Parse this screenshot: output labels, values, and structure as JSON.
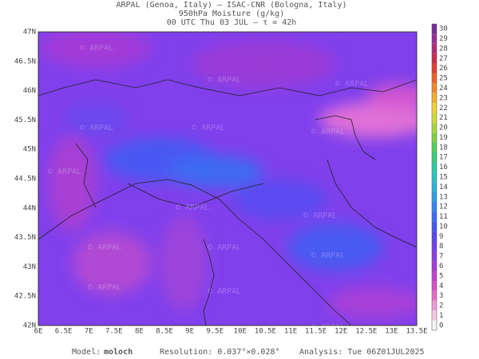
{
  "header": {
    "line1": "ARPAL (Genoa, Italy)  —  ISAC-CNR (Bologna, Italy)",
    "line2": "950hPa Moisture (g/kg)",
    "line3": "00 UTC Thu 03 JUL  –  τ = 42h"
  },
  "map": {
    "watermark": "© ARPAL",
    "lat_labels": [
      "47N",
      "46.5N",
      "46N",
      "45.5N",
      "45N",
      "44.5N",
      "44N",
      "43.5N",
      "43N",
      "42.5N",
      "42N"
    ],
    "lon_labels": [
      "6E",
      "6.5E",
      "7E",
      "7.5E",
      "8E",
      "8.5E",
      "9E",
      "9.5E",
      "10E",
      "10.5E",
      "11E",
      "11.5E",
      "12E",
      "12.5E",
      "13E",
      "13.5E"
    ]
  },
  "colorbar": {
    "ticks": [
      0,
      1,
      2,
      3,
      4,
      5,
      6,
      7,
      8,
      9,
      10,
      11,
      12,
      13,
      14,
      15,
      16,
      17,
      18,
      19,
      20,
      21,
      22,
      23,
      24,
      25,
      26,
      27,
      28,
      29,
      30
    ],
    "colors": [
      "#f2f2f2",
      "#f7c6e6",
      "#f29ad8",
      "#e86ccd",
      "#d94fc9",
      "#c43fcf",
      "#a63ad6",
      "#8c3ce0",
      "#7440ea",
      "#5a48f0",
      "#4258f2",
      "#3a6cf2",
      "#3684f0",
      "#309ce8",
      "#2cb4dc",
      "#2ac4c4",
      "#2ccca4",
      "#36d07c",
      "#52d25a",
      "#7cd444",
      "#a8d83c",
      "#d0da38",
      "#f0d234",
      "#f6b02e",
      "#f28a2a",
      "#ec6428",
      "#e04030",
      "#cc2c4c",
      "#b42a78",
      "#9a2c9c",
      "#7a2a9a"
    ]
  },
  "footer": {
    "model_label": "Model:",
    "model": "moloch",
    "resolution": "Resolution: 0.037°×0.028°",
    "analysis": "Analysis: Tue 06Z01JUL2025"
  }
}
